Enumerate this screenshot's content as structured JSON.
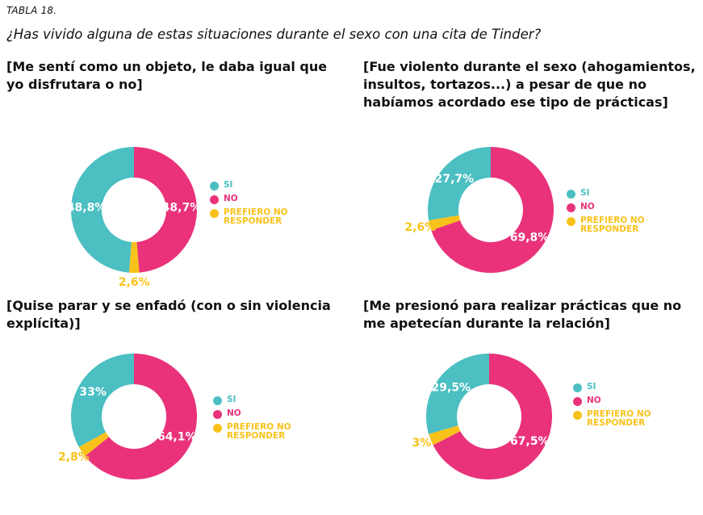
{
  "header": {
    "table_label": "TABLA 18.",
    "question": "¿Has vivido alguna de estas situaciones durante el sexo con una cita de Tinder?"
  },
  "colors": {
    "si": "#4bbfc2",
    "no": "#e9327a",
    "prefiero": "#f8c21a"
  },
  "chart_data": [
    {
      "type": "pie",
      "subtype": "donut",
      "title": "[Me sentí como un objeto, le daba igual que yo disfrutara o no]",
      "categories": [
        "SI",
        "NO",
        "PREFIERO NO RESPONDER"
      ],
      "values": [
        48.8,
        48.7,
        2.6
      ],
      "labels": [
        "48,8%",
        "48,7%",
        "2,6%"
      ]
    },
    {
      "type": "pie",
      "subtype": "donut",
      "title": "[Fue violento durante el sexo (ahogamientos, insultos, tortazos...) a pesar de que no habíamos acordado ese tipo de prácticas]",
      "categories": [
        "SI",
        "NO",
        "PREFIERO NO RESPONDER"
      ],
      "values": [
        27.7,
        69.8,
        2.6
      ],
      "labels": [
        "27,7%",
        "69,8%",
        "2,6%"
      ]
    },
    {
      "type": "pie",
      "subtype": "donut",
      "title": "[Quise parar y se enfadó (con o sin violencia explícita)]",
      "categories": [
        "SI",
        "NO",
        "PREFIERO NO RESPONDER"
      ],
      "values": [
        33,
        64.1,
        2.8
      ],
      "labels": [
        "33%",
        "64,1%",
        "2,8%"
      ]
    },
    {
      "type": "pie",
      "subtype": "donut",
      "title": "[Me presionó para realizar prácticas que no me apetecían durante la relación]",
      "categories": [
        "SI",
        "NO",
        "PREFIERO NO RESPONDER"
      ],
      "values": [
        29.5,
        67.5,
        3
      ],
      "labels": [
        "29,5%",
        "67,5%",
        "3%"
      ]
    }
  ]
}
